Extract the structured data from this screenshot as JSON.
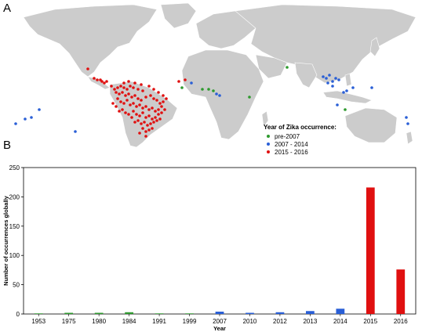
{
  "panels": {
    "a_label": "A",
    "b_label": "B"
  },
  "legend": {
    "title": "Year of Zika occurrence:",
    "items": [
      {
        "label": "pre-2007",
        "color": "#2e9a2e"
      },
      {
        "label": "2007 - 2014",
        "color": "#2a5fd6"
      },
      {
        "label": "2015 - 2016",
        "color": "#e01010"
      }
    ]
  },
  "colors": {
    "land": "#cccccc",
    "pre2007": "#2e9a2e",
    "mid": "#2a5fd6",
    "recent": "#e01010"
  },
  "chart_data": {
    "type": "bar",
    "categories": [
      "1953",
      "1975",
      "1980",
      "1984",
      "1991",
      "1999",
      "2007",
      "2010",
      "2012",
      "2013",
      "2014",
      "2015",
      "2016"
    ],
    "values": [
      1,
      2,
      2,
      3,
      1,
      1,
      4,
      2,
      3,
      5,
      9,
      216,
      76
    ],
    "bar_colors": [
      "#2e9a2e",
      "#2e9a2e",
      "#2e9a2e",
      "#2e9a2e",
      "#2e9a2e",
      "#2e9a2e",
      "#2a5fd6",
      "#2a5fd6",
      "#2a5fd6",
      "#2a5fd6",
      "#2a5fd6",
      "#e01010",
      "#e01010"
    ],
    "xlabel": "Year",
    "ylabel": "Number of occurrences globally",
    "ylim": [
      0,
      250
    ],
    "yticks": [
      0,
      50,
      100,
      150,
      200,
      250
    ],
    "grid": false
  }
}
